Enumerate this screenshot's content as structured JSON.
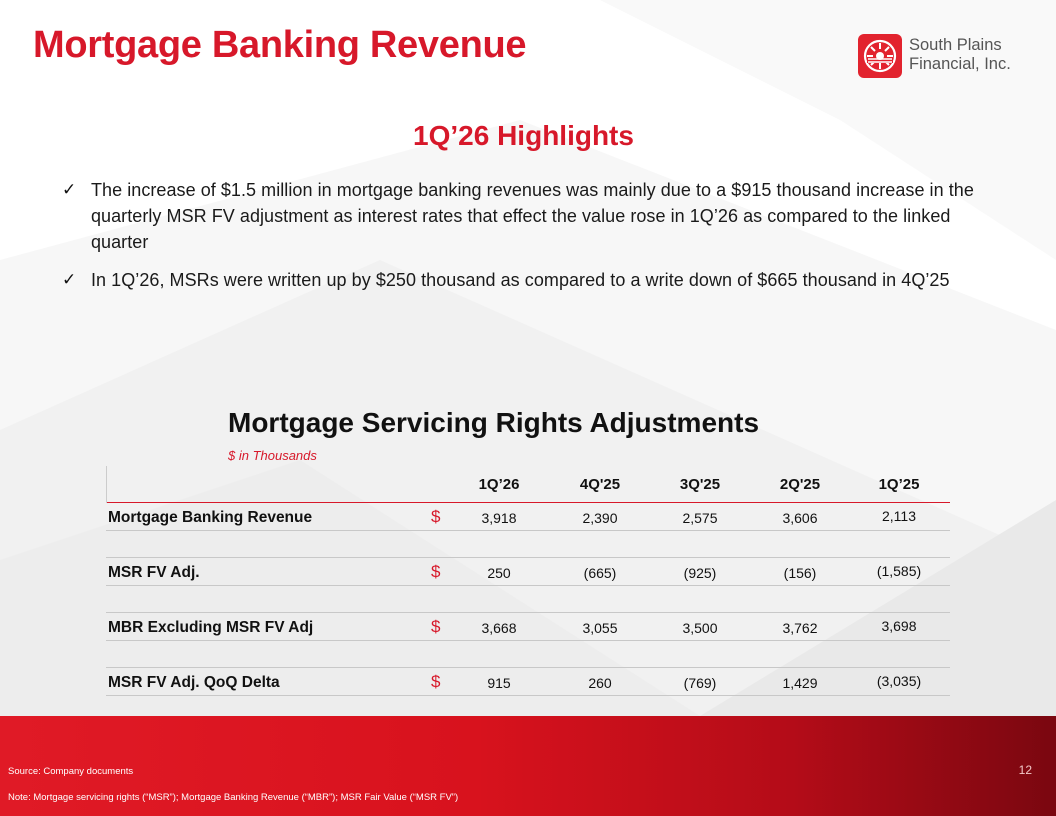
{
  "title": "Mortgage Banking Revenue",
  "logo": {
    "line1": "South Plains",
    "line2": "Financial, Inc."
  },
  "highlights": {
    "title": "1Q’26 Highlights",
    "bullets": [
      "The increase of $1.5 million in mortgage banking revenues was mainly due to a $915 thousand increase in the quarterly MSR FV adjustment as interest rates that effect the value rose in 1Q’26 as compared to the linked quarter",
      "In 1Q’26, MSRs were written up by $250 thousand as compared to a write down of $665 thousand in 4Q’25"
    ]
  },
  "table": {
    "title": "Mortgage Servicing Rights Adjustments",
    "subtitle": "$ in Thousands",
    "columns": [
      "1Q’26",
      "4Q'25",
      "3Q'25",
      "2Q'25",
      "1Q’25"
    ],
    "currency_symbol": "$",
    "rows": [
      {
        "label": "Mortgage Banking Revenue",
        "values": [
          "3,918",
          "2,390",
          "2,575",
          "3,606",
          "2,113"
        ]
      },
      {
        "label": "MSR FV Adj.",
        "values": [
          "250",
          "(665)",
          "(925)",
          "(156)",
          "(1,585)"
        ]
      },
      {
        "label": "MBR Excluding MSR FV Adj",
        "values": [
          "3,668",
          "3,055",
          "3,500",
          "3,762",
          "3,698"
        ]
      },
      {
        "label": "MSR FV Adj. QoQ Delta",
        "values": [
          "915",
          "260",
          "(769)",
          "1,429",
          "(3,035)"
        ]
      }
    ]
  },
  "footer": {
    "source": "Source: Company documents",
    "note": "Note:  Mortgage servicing rights (“MSR”); Mortgage Banking Revenue (“MBR”); MSR Fair Value (“MSR FV”)",
    "page_number": "12"
  },
  "colors": {
    "brand_red": "#d7182a",
    "footer_dark_red": "#7a0710"
  },
  "icons": {
    "bullet": "checkmark-icon",
    "logo": "sun-emblem-icon"
  }
}
